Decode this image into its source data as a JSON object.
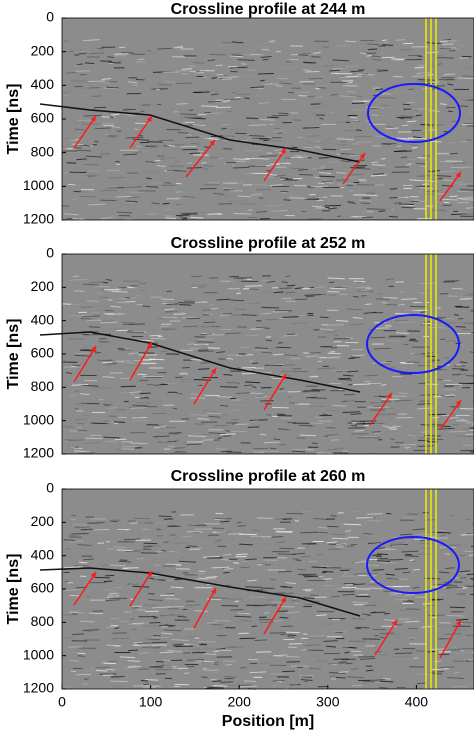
{
  "chart_data": [
    {
      "type": "image",
      "title": "Crossline profile at 244 m",
      "ylabel": "Time [ns]",
      "ylim": [
        0,
        1200
      ],
      "yticks": [
        0,
        200,
        400,
        600,
        800,
        1000,
        1200
      ],
      "y_reversed": true,
      "xlim": [
        0,
        465
      ]
    },
    {
      "type": "image",
      "title": "Crossline profile at 252 m",
      "ylabel": "Time [ns]",
      "ylim": [
        0,
        1200
      ],
      "yticks": [
        0,
        200,
        400,
        600,
        800,
        1000,
        1200
      ],
      "y_reversed": true,
      "xlim": [
        0,
        465
      ]
    },
    {
      "type": "image",
      "title": "Crossline profile at 260 m",
      "ylabel": "Time [ns]",
      "ylim": [
        0,
        1200
      ],
      "yticks": [
        0,
        200,
        400,
        600,
        800,
        1000,
        1200
      ],
      "y_reversed": true,
      "xlim": [
        0,
        465
      ],
      "xticks": [
        0,
        100,
        200,
        300,
        400
      ],
      "xlabel": "Position [m]"
    }
  ]
}
